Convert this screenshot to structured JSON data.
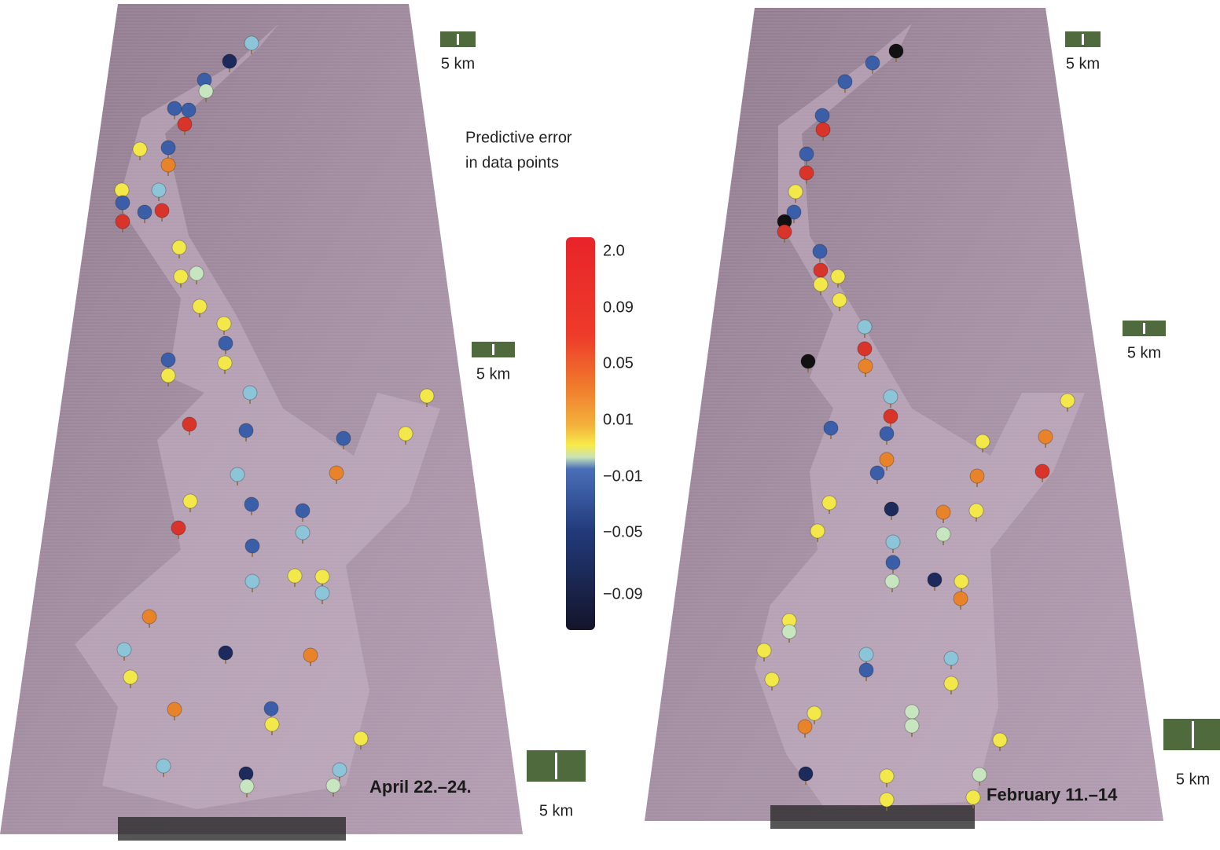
{
  "title": [
    "Predictive error",
    "in data points"
  ],
  "colorbar": {
    "labels": [
      "2.0",
      "0.09",
      "0.05",
      "0.01",
      "−0.01",
      "−0.05",
      "−0.09"
    ]
  },
  "panels": [
    {
      "label": "April 22.–24.",
      "scale_labels": [
        "5 km",
        "5 km",
        "5 km"
      ]
    },
    {
      "label": "February 11.–14",
      "scale_labels": [
        "5 km",
        "5 km",
        "5 km"
      ]
    }
  ]
}
